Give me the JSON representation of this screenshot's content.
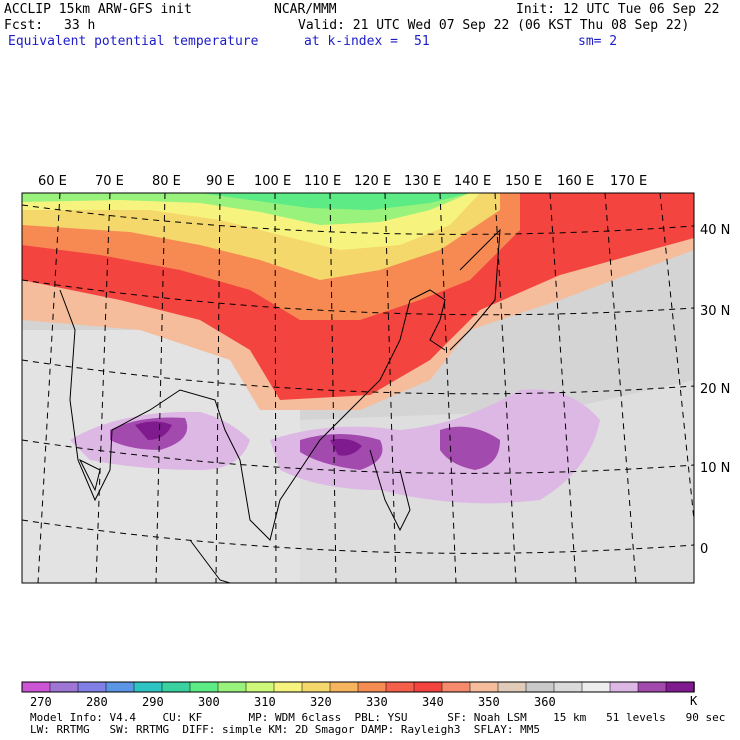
{
  "header": {
    "model": "ACCLIP 15km ARW-GFS init",
    "org": "NCAR/MMM",
    "init": "Init: 12 UTC Tue 06 Sep 22",
    "fcst_label": "Fcst:",
    "fcst_value": "33 h",
    "valid": "Valid: 21 UTC Wed 07 Sep 22 (06 KST Thu 08 Sep 22)",
    "field": "Equivalent potential temperature",
    "level": "at k-index =",
    "level_value": "51",
    "smooth": "sm= 2"
  },
  "map": {
    "lon_labels": [
      "60 E",
      "70 E",
      "80 E",
      "90 E",
      "100 E",
      "110 E",
      "120 E",
      "130 E",
      "140 E",
      "150 E",
      "160 E",
      "170 E"
    ],
    "lat_labels": [
      "40 N",
      "30 N",
      "20 N",
      "10 N",
      "0"
    ]
  },
  "colorbar": {
    "colors": [
      "#cc55d5",
      "#9f76d6",
      "#7f7fe6",
      "#5b95e6",
      "#2fc4c4",
      "#39d1a0",
      "#5ceb85",
      "#99f27b",
      "#ccf97a",
      "#f6f47e",
      "#f4d86c",
      "#f6b45f",
      "#f58c52",
      "#f5604a",
      "#f3443f",
      "#f68a6c",
      "#f5bd9c",
      "#e0cab8",
      "#c9c9c9",
      "#dadada",
      "#ededed",
      "#ddb8e4",
      "#a24aad",
      "#801a8f"
    ],
    "labels": [
      "270",
      "280",
      "290",
      "300",
      "310",
      "320",
      "330",
      "340",
      "350",
      "360"
    ],
    "unit": "K"
  },
  "info": {
    "line1": "Model Info: V4.4    CU: KF       MP: WDM 6class  PBL: YSU      SF: Noah LSM    15 km   51 levels   90 sec",
    "line2": "LW: RRTMG   SW: RRTMG  DIFF: simple KM: 2D Smagor DAMP: Rayleigh3  SFLAY: MM5"
  }
}
